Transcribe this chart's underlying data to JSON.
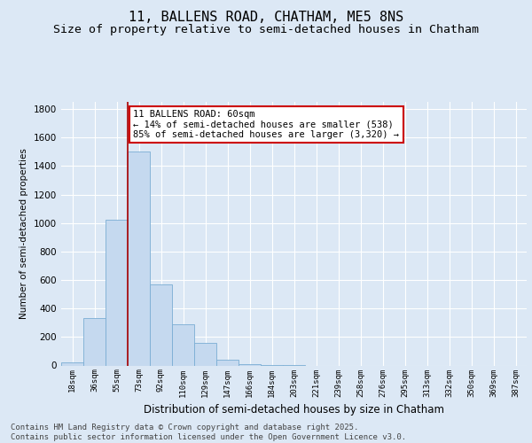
{
  "title_line1": "11, BALLENS ROAD, CHATHAM, ME5 8NS",
  "title_line2": "Size of property relative to semi-detached houses in Chatham",
  "xlabel": "Distribution of semi-detached houses by size in Chatham",
  "ylabel": "Number of semi-detached properties",
  "categories": [
    "18sqm",
    "36sqm",
    "55sqm",
    "73sqm",
    "92sqm",
    "110sqm",
    "129sqm",
    "147sqm",
    "166sqm",
    "184sqm",
    "203sqm",
    "221sqm",
    "239sqm",
    "258sqm",
    "276sqm",
    "295sqm",
    "313sqm",
    "332sqm",
    "350sqm",
    "369sqm",
    "387sqm"
  ],
  "values": [
    20,
    330,
    1020,
    1500,
    570,
    290,
    160,
    40,
    10,
    5,
    5,
    0,
    0,
    0,
    0,
    0,
    0,
    0,
    0,
    0,
    0
  ],
  "bar_color": "#c5d9ef",
  "bar_edge_color": "#7aadd4",
  "vline_color": "#aa0000",
  "annotation_text": "11 BALLENS ROAD: 60sqm\n← 14% of semi-detached houses are smaller (538)\n85% of semi-detached houses are larger (3,320) →",
  "annotation_box_color": "#ffffff",
  "annotation_box_edge_color": "#cc0000",
  "ylim": [
    0,
    1850
  ],
  "yticks": [
    0,
    200,
    400,
    600,
    800,
    1000,
    1200,
    1400,
    1600,
    1800
  ],
  "background_color": "#dce8f5",
  "plot_background_color": "#dce8f5",
  "grid_color": "#ffffff",
  "footer_text": "Contains HM Land Registry data © Crown copyright and database right 2025.\nContains public sector information licensed under the Open Government Licence v3.0.",
  "title_fontsize": 11,
  "subtitle_fontsize": 9.5,
  "annotation_fontsize": 7.5,
  "footer_fontsize": 6.5
}
